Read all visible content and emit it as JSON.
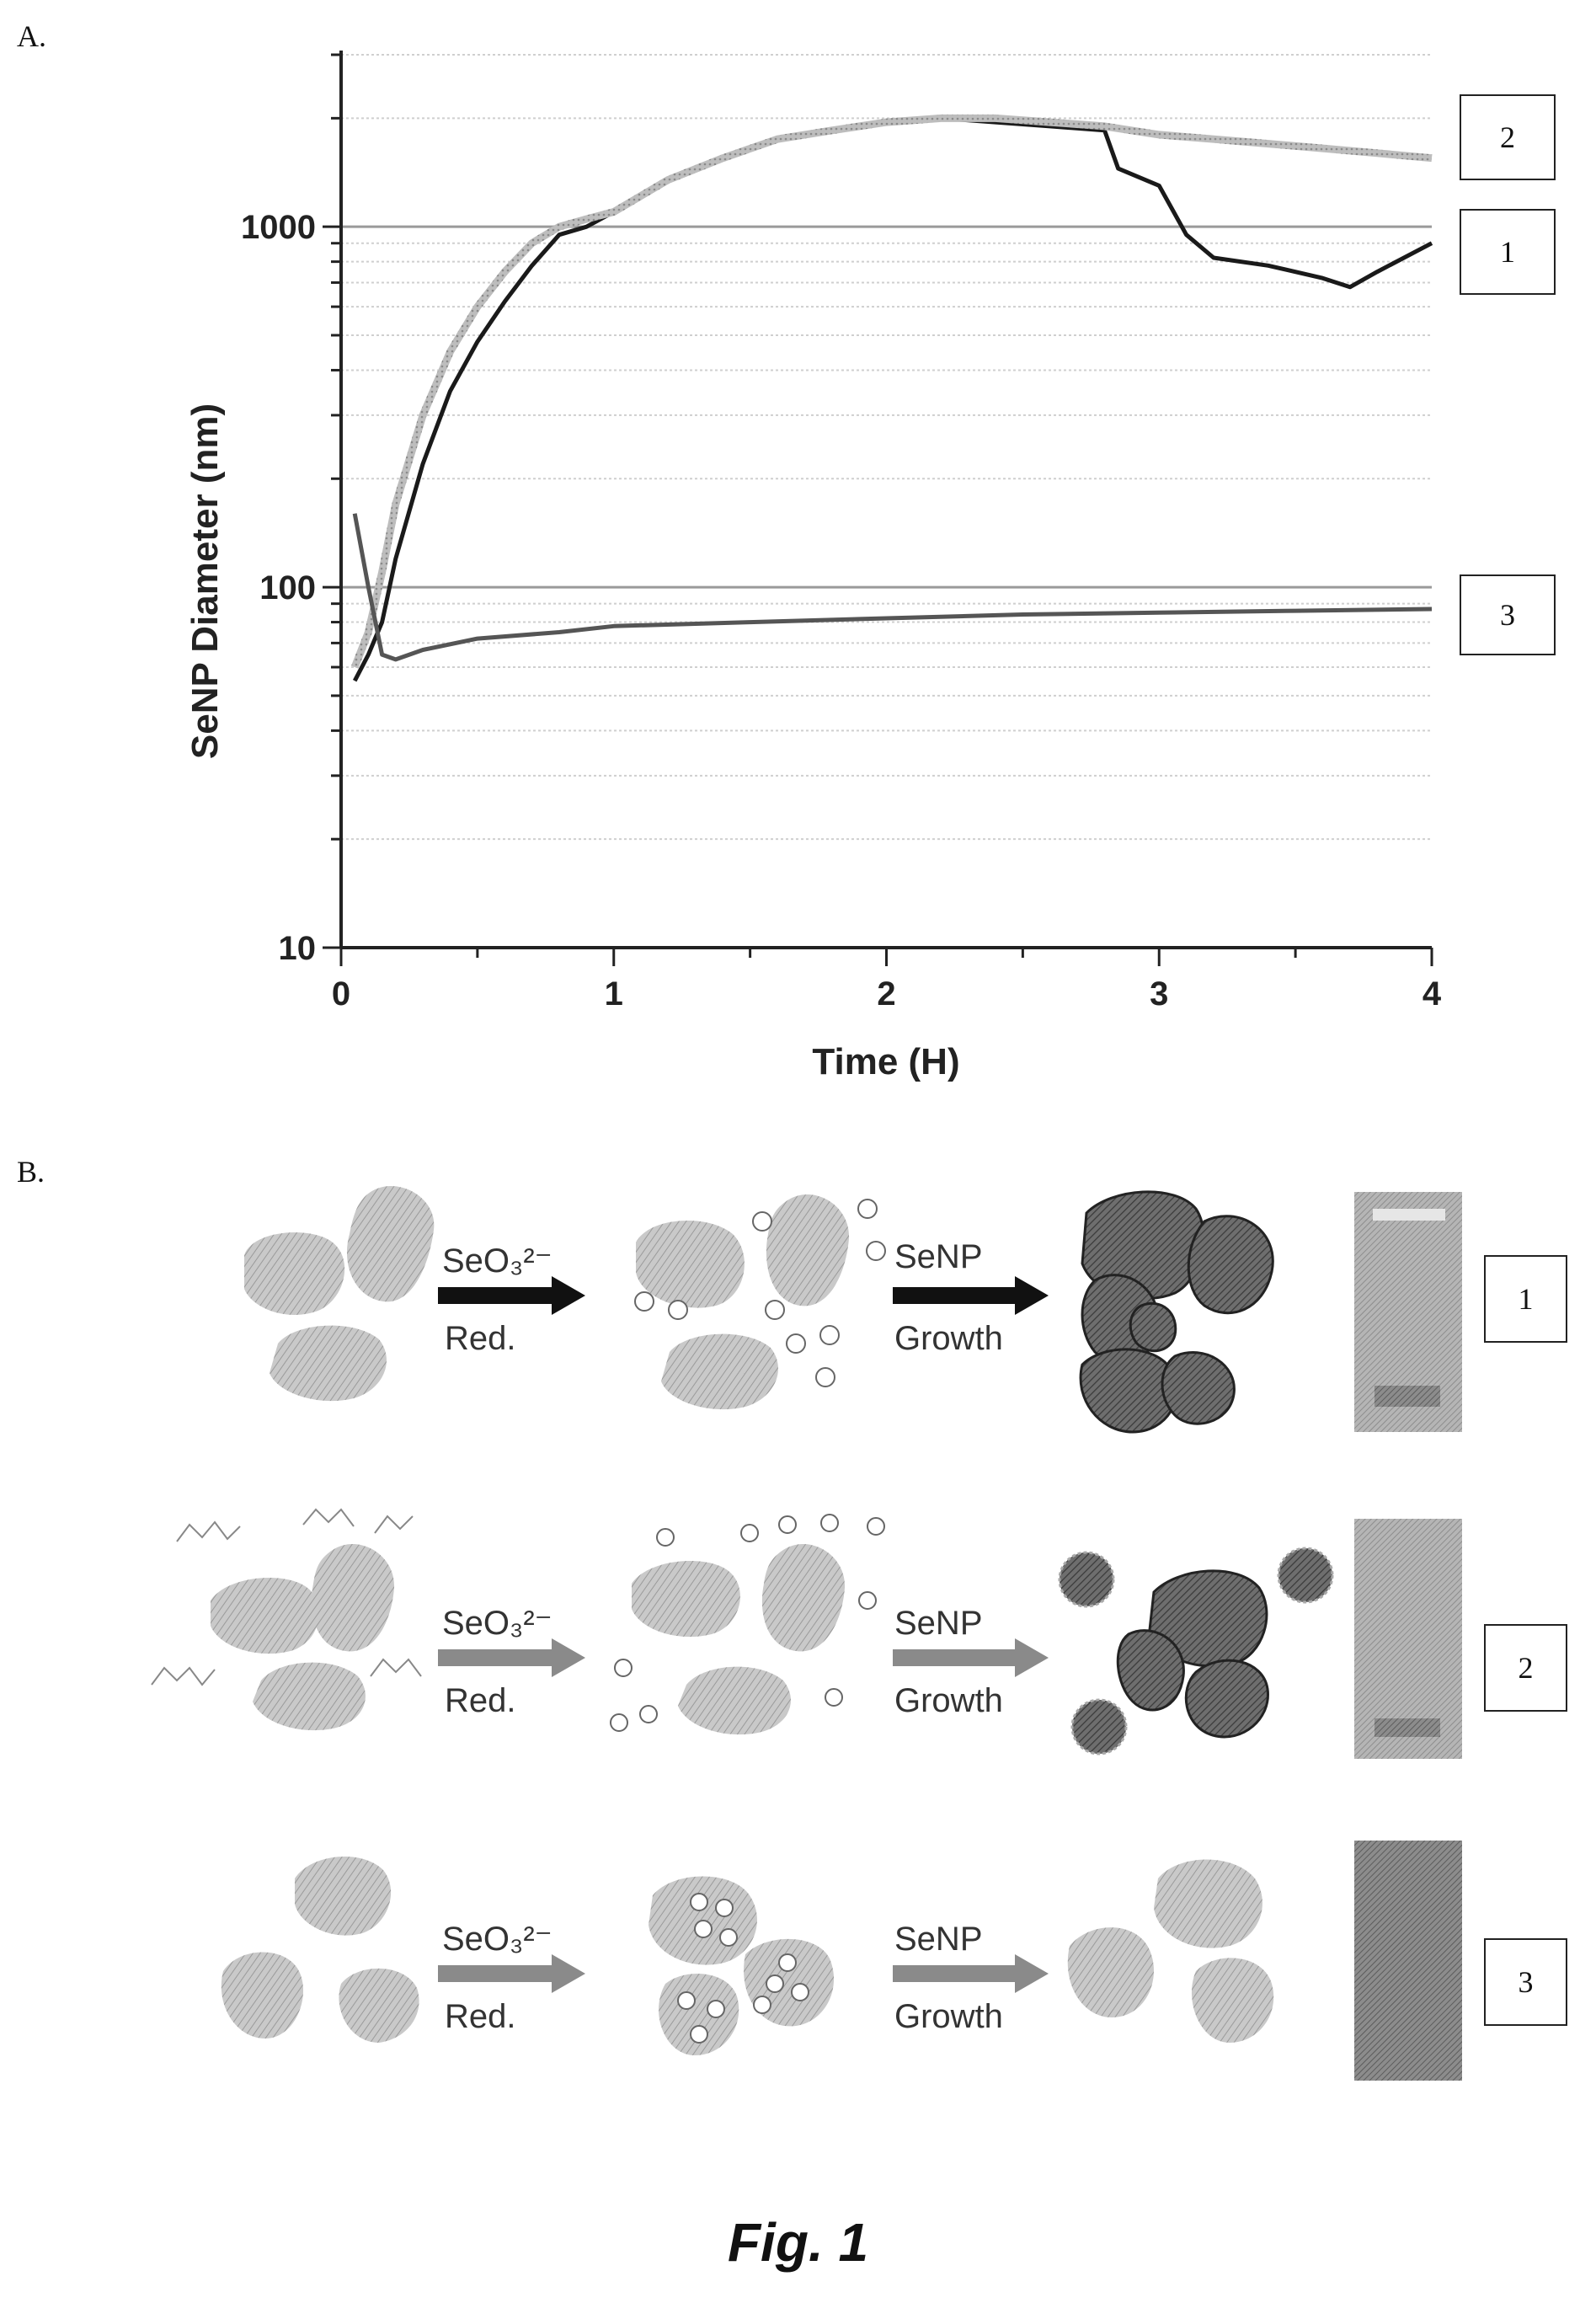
{
  "panels": {
    "a_label": "A.",
    "b_label": "B."
  },
  "chart_data": {
    "type": "line",
    "xlabel": "Time (H)",
    "ylabel": "SeNP Diameter (nm)",
    "xlim": [
      0,
      4
    ],
    "ylim": [
      10,
      3000
    ],
    "y_scale": "log",
    "x_ticks": [
      "0",
      "1",
      "2",
      "3",
      "4"
    ],
    "y_ticks": [
      "10",
      "100",
      "1000"
    ],
    "grid": true,
    "series": [
      {
        "name": "1",
        "x": [
          0.05,
          0.1,
          0.15,
          0.2,
          0.3,
          0.4,
          0.5,
          0.6,
          0.7,
          0.8,
          0.9,
          1.0,
          1.2,
          1.4,
          1.6,
          1.8,
          2.0,
          2.2,
          2.4,
          2.6,
          2.8,
          2.85,
          3.0,
          3.1,
          3.2,
          3.4,
          3.6,
          3.7,
          3.8,
          4.0
        ],
        "y": [
          55,
          65,
          80,
          120,
          220,
          350,
          480,
          620,
          780,
          950,
          1000,
          1100,
          1350,
          1550,
          1750,
          1850,
          1950,
          2000,
          1950,
          1900,
          1850,
          1450,
          1300,
          950,
          820,
          780,
          720,
          680,
          750,
          900
        ]
      },
      {
        "name": "2",
        "x": [
          0.05,
          0.1,
          0.15,
          0.2,
          0.3,
          0.4,
          0.5,
          0.6,
          0.7,
          0.8,
          0.9,
          1.0,
          1.2,
          1.4,
          1.6,
          1.8,
          2.0,
          2.2,
          2.4,
          2.6,
          2.8,
          3.0,
          3.2,
          3.4,
          3.6,
          3.8,
          4.0
        ],
        "y": [
          60,
          75,
          110,
          170,
          300,
          450,
          600,
          750,
          900,
          1000,
          1050,
          1100,
          1350,
          1550,
          1750,
          1850,
          1950,
          2000,
          2000,
          1950,
          1900,
          1800,
          1750,
          1700,
          1650,
          1600,
          1550
        ]
      },
      {
        "name": "3",
        "x": [
          0.05,
          0.1,
          0.15,
          0.2,
          0.3,
          0.5,
          0.8,
          1.0,
          1.5,
          2.0,
          2.5,
          3.0,
          3.5,
          4.0
        ],
        "y": [
          160,
          100,
          65,
          63,
          67,
          72,
          75,
          78,
          80,
          82,
          84,
          85,
          86,
          87
        ]
      }
    ],
    "series_labels": [
      "2",
      "1",
      "3"
    ]
  },
  "schematic": {
    "rows": [
      {
        "label": "1",
        "arrow1_top": "SeO₃²⁻",
        "arrow1_bottom": "Red.",
        "arrow2_top": "SeNP",
        "arrow2_bottom": "Growth",
        "arrow_color": "#111111"
      },
      {
        "label": "2",
        "arrow1_top": "SeO₃²⁻",
        "arrow1_bottom": "Red.",
        "arrow2_top": "SeNP",
        "arrow2_bottom": "Growth",
        "arrow_color": "#8a8a8a"
      },
      {
        "label": "3",
        "arrow1_top": "SeO₃²⁻",
        "arrow1_bottom": "Red.",
        "arrow2_top": "SeNP",
        "arrow2_bottom": "Growth",
        "arrow_color": "#8a8a8a"
      }
    ]
  },
  "caption": "Fig. 1"
}
